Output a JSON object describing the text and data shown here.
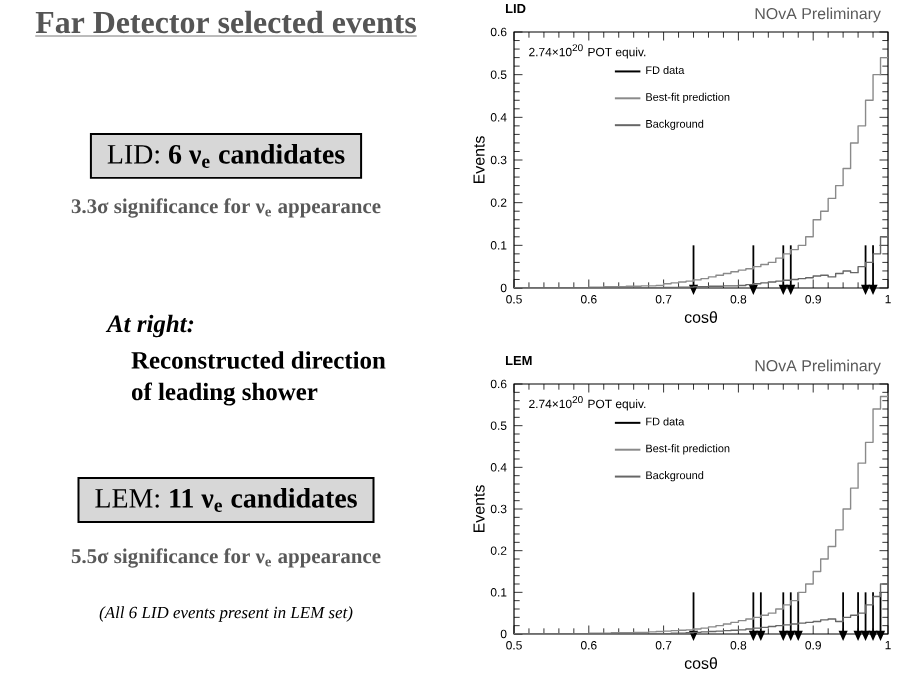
{
  "chart_data": [
    {
      "type": "other",
      "title": "Far Detector selected events",
      "annotations": [
        "LID: **6 ν$_{e}$ candidates**",
        "3.3σ significance for ν$_{e}$ appearance",
        "*At right:*",
        "Reconstructed direction",
        "of leading shower",
        "LEM: **11 ν$_{e}$ candidates**",
        "5.5σ significance for ν$_{e}$ appearance",
        "(All 6 LID events present in LEM set)"
      ]
    },
    {
      "type": "histogram",
      "title": "LID",
      "xlabel": "cosθ",
      "ylabel": "Events",
      "annotations": [
        "2.74×10$^{20}$ POT equiv.",
        "NOvA Preliminary"
      ],
      "xlim": [
        0.5,
        1.0
      ],
      "ylim": [
        0,
        0.6
      ],
      "xticks": [
        0.5,
        0.6,
        0.7,
        0.8,
        0.9,
        1
      ],
      "yticks": [
        0,
        0.1,
        0.2,
        0.3,
        0.4,
        0.5,
        0.6
      ],
      "legend": "top left",
      "bins": [
        0.5,
        0.51,
        0.52,
        0.53,
        0.54,
        0.55,
        0.56,
        0.57,
        0.58,
        0.59,
        0.6,
        0.61,
        0.62,
        0.63,
        0.64,
        0.65,
        0.66,
        0.67,
        0.68,
        0.69,
        0.7,
        0.71,
        0.72,
        0.73,
        0.74,
        0.75,
        0.76,
        0.77,
        0.78,
        0.79,
        0.8,
        0.81,
        0.82,
        0.83,
        0.84,
        0.85,
        0.86,
        0.87,
        0.88,
        0.89,
        0.9,
        0.91,
        0.92,
        0.93,
        0.94,
        0.95,
        0.96,
        0.97,
        0.98,
        0.99,
        1.0
      ],
      "series": [
        {
          "name": "FD data",
          "type": "scatter",
          "color": "#000000",
          "x": [
            0.74,
            0.82,
            0.86,
            0.87,
            0.97,
            0.98
          ],
          "values": [
            0,
            0,
            0,
            0,
            0,
            0
          ],
          "errors": [
            [
              0,
              0.1
            ],
            [
              0,
              0.1
            ],
            [
              0,
              0.1
            ],
            [
              0,
              0.1
            ],
            [
              0,
              0.1
            ],
            [
              0,
              0.1
            ]
          ]
        },
        {
          "name": "Best-fit prediction",
          "color": "#8a8a8a",
          "values": [
            0,
            0,
            0,
            0,
            0,
            0,
            0,
            0,
            0,
            0,
            0.002,
            0.002,
            0.003,
            0.003,
            0.003,
            0.004,
            0.004,
            0.005,
            0.005,
            0.006,
            0.01,
            0.012,
            0.014,
            0.016,
            0.019,
            0.022,
            0.026,
            0.03,
            0.034,
            0.038,
            0.042,
            0.045,
            0.05,
            0.055,
            0.06,
            0.07,
            0.08,
            0.09,
            0.1,
            0.12,
            0.16,
            0.18,
            0.21,
            0.24,
            0.28,
            0.34,
            0.38,
            0.44,
            0.5,
            0.54
          ]
        },
        {
          "name": "Background",
          "color": "#666666",
          "values": [
            0,
            0,
            0,
            0,
            0,
            0,
            0,
            0,
            0,
            0,
            0,
            0,
            0,
            0,
            0,
            0,
            0,
            0,
            0,
            0,
            0.001,
            0.001,
            0.002,
            0.002,
            0.003,
            0.003,
            0.004,
            0.004,
            0.005,
            0.005,
            0.006,
            0.008,
            0.01,
            0.012,
            0.014,
            0.016,
            0.018,
            0.02,
            0.022,
            0.024,
            0.028,
            0.03,
            0.026,
            0.034,
            0.04,
            0.036,
            0.05,
            0.06,
            0.08,
            0.12
          ]
        }
      ]
    },
    {
      "type": "histogram",
      "title": "LEM",
      "xlabel": "cosθ",
      "ylabel": "Events",
      "annotations": [
        "2.74×10$^{20}$ POT equiv.",
        "NOvA Preliminary"
      ],
      "xlim": [
        0.5,
        1.0
      ],
      "ylim": [
        0,
        0.6
      ],
      "xticks": [
        0.5,
        0.6,
        0.7,
        0.8,
        0.9,
        1
      ],
      "yticks": [
        0,
        0.1,
        0.2,
        0.3,
        0.4,
        0.5,
        0.6
      ],
      "legend": "top left",
      "bins": [
        0.5,
        0.51,
        0.52,
        0.53,
        0.54,
        0.55,
        0.56,
        0.57,
        0.58,
        0.59,
        0.6,
        0.61,
        0.62,
        0.63,
        0.64,
        0.65,
        0.66,
        0.67,
        0.68,
        0.69,
        0.7,
        0.71,
        0.72,
        0.73,
        0.74,
        0.75,
        0.76,
        0.77,
        0.78,
        0.79,
        0.8,
        0.81,
        0.82,
        0.83,
        0.84,
        0.85,
        0.86,
        0.87,
        0.88,
        0.89,
        0.9,
        0.91,
        0.92,
        0.93,
        0.94,
        0.95,
        0.96,
        0.97,
        0.98,
        0.99,
        1.0
      ],
      "series": [
        {
          "name": "FD data",
          "type": "scatter",
          "color": "#000000",
          "x": [
            0.74,
            0.82,
            0.83,
            0.86,
            0.87,
            0.88,
            0.94,
            0.96,
            0.97,
            0.98,
            0.99
          ],
          "values": [
            0,
            0,
            0,
            0,
            0,
            0,
            0,
            0,
            0,
            0,
            0
          ],
          "errors": [
            [
              0,
              0.1
            ],
            [
              0,
              0.1
            ],
            [
              0,
              0.1
            ],
            [
              0,
              0.1
            ],
            [
              0,
              0.1
            ],
            [
              0,
              0.1
            ],
            [
              0,
              0.1
            ],
            [
              0,
              0.1
            ],
            [
              0,
              0.1
            ],
            [
              0,
              0.1
            ],
            [
              0,
              0.1
            ]
          ]
        },
        {
          "name": "Best-fit prediction",
          "color": "#8a8a8a",
          "values": [
            0,
            0,
            0,
            0,
            0,
            0,
            0,
            0,
            0,
            0,
            0.002,
            0.002,
            0.002,
            0.003,
            0.003,
            0.003,
            0.004,
            0.004,
            0.005,
            0.006,
            0.007,
            0.008,
            0.009,
            0.01,
            0.012,
            0.014,
            0.017,
            0.02,
            0.024,
            0.028,
            0.032,
            0.036,
            0.04,
            0.045,
            0.05,
            0.06,
            0.07,
            0.08,
            0.1,
            0.12,
            0.15,
            0.18,
            0.21,
            0.25,
            0.3,
            0.35,
            0.41,
            0.46,
            0.54,
            0.57
          ]
        },
        {
          "name": "Background",
          "color": "#666666",
          "values": [
            0,
            0,
            0,
            0,
            0,
            0,
            0,
            0,
            0,
            0,
            0,
            0,
            0,
            0,
            0,
            0,
            0,
            0,
            0,
            0,
            0.001,
            0.002,
            0.002,
            0.003,
            0.004,
            0.005,
            0.006,
            0.007,
            0.008,
            0.009,
            0.01,
            0.012,
            0.014,
            0.016,
            0.018,
            0.02,
            0.022,
            0.024,
            0.026,
            0.028,
            0.03,
            0.034,
            0.036,
            0.03,
            0.04,
            0.045,
            0.05,
            0.07,
            0.09,
            0.12
          ]
        }
      ]
    }
  ]
}
